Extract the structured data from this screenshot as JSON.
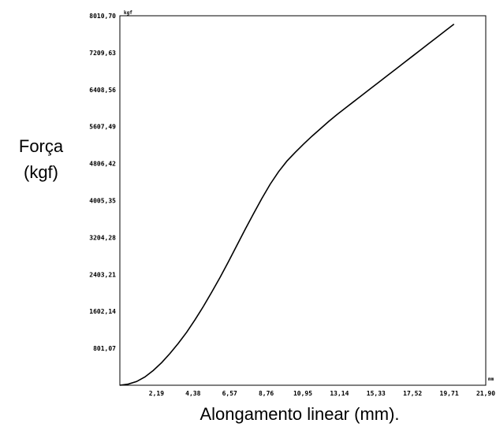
{
  "chart_data": {
    "type": "line",
    "title": "",
    "ylabel_line1": "Força",
    "ylabel_line2": "(kgf)",
    "xlabel": "Alongamento linear (mm).",
    "y_unit": "kgf",
    "x_unit": "mm",
    "xlim": [
      0,
      21.9
    ],
    "ylim": [
      0,
      8010.7
    ],
    "x_ticks": [
      2.19,
      4.38,
      6.57,
      8.76,
      10.95,
      13.14,
      15.33,
      17.52,
      19.71,
      21.9
    ],
    "x_tick_labels": [
      "2,19",
      "4,38",
      "6,57",
      "8,76",
      "10,95",
      "13,14",
      "15,33",
      "17,52",
      "19,71",
      "21,90"
    ],
    "y_ticks": [
      801.07,
      1602.14,
      2403.21,
      3204.28,
      4005.35,
      4806.42,
      5607.49,
      6408.56,
      7209.63,
      8010.7
    ],
    "y_tick_labels": [
      "801,07",
      "1602,14",
      "2403,21",
      "3204,28",
      "4005,35",
      "4806,42",
      "5607,49",
      "6408,56",
      "7209,63",
      "8010,70"
    ],
    "grid": false,
    "series": [
      {
        "x": [
          0,
          0.5,
          1.0,
          1.5,
          2.0,
          2.5,
          3.0,
          3.5,
          4.0,
          4.5,
          5.0,
          5.5,
          6.0,
          6.5,
          7.0,
          7.5,
          8.0,
          8.5,
          9.0,
          9.5,
          10.0,
          10.5,
          11.0,
          11.5,
          12.0,
          12.5,
          13.0,
          13.5,
          14.0,
          14.5,
          15.0,
          15.5,
          16.0,
          16.5,
          17.0,
          17.5,
          18.0,
          18.5,
          19.0,
          19.5,
          20.0
        ],
        "y": [
          0,
          25,
          80,
          180,
          320,
          490,
          690,
          910,
          1150,
          1420,
          1710,
          2020,
          2340,
          2680,
          3030,
          3380,
          3720,
          4050,
          4360,
          4630,
          4860,
          5050,
          5230,
          5400,
          5560,
          5720,
          5870,
          6010,
          6150,
          6290,
          6430,
          6570,
          6710,
          6850,
          6990,
          7130,
          7270,
          7410,
          7550,
          7690,
          7830
        ]
      }
    ]
  }
}
